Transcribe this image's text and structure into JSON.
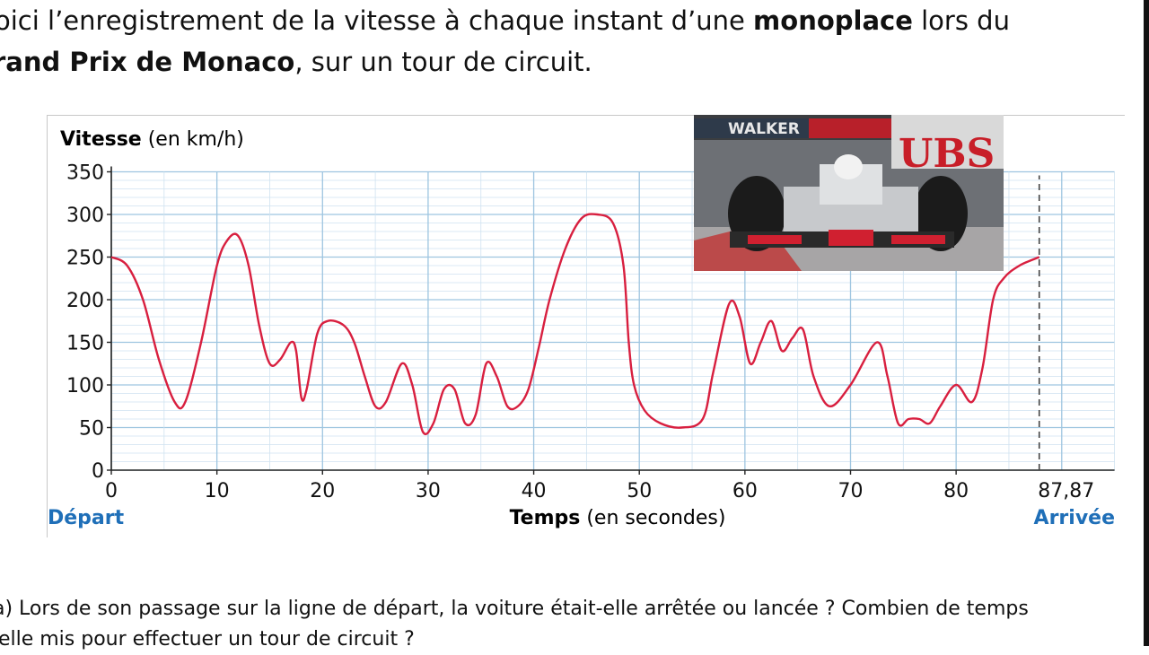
{
  "intro": {
    "line1_start": "oici l’enregistrement de la vitesse à chaque instant d’une ",
    "line1_bold": "monoplace",
    "line1_end": " lors du",
    "line2_bold": "rand Prix de Monaco",
    "line2_end": ", sur un tour de circuit."
  },
  "photo": {
    "banner_left": "WALKER",
    "banner_right": "UBS"
  },
  "question": {
    "line1": "a) Lors de son passage sur la ligne de départ, la voiture était-elle arrêtée ou lancée ? Combien de temps",
    "line2": "-elle mis pour effectuer un tour de circuit ?"
  },
  "chart_data": {
    "type": "line",
    "ylabel_bold": "Vitesse",
    "ylabel_unit": " (en km/h)",
    "xlabel_bold": "Temps",
    "xlabel_unit": " (en secondes)",
    "start_label": "Départ",
    "end_label": "Arrivée",
    "xlim": [
      0,
      95
    ],
    "ylim": [
      0,
      350
    ],
    "x_ticks": [
      0,
      10,
      20,
      30,
      40,
      50,
      60,
      70,
      80
    ],
    "x_tick_labels": [
      "0",
      "10",
      "20",
      "30",
      "40",
      "50",
      "60",
      "70",
      "80"
    ],
    "end_tick": 87.87,
    "end_tick_label": "87,87",
    "y_ticks": [
      0,
      50,
      100,
      150,
      200,
      250,
      300,
      350
    ],
    "y_tick_labels": [
      "0",
      "50",
      "100",
      "150",
      "200",
      "250",
      "300",
      "350"
    ],
    "grid": true,
    "accent_color": "#1f6fb8",
    "line_color": "#d81f3f",
    "series": [
      {
        "x": [
          0,
          1.5,
          3,
          4.5,
          6,
          7,
          8.5,
          10,
          11,
          12,
          13,
          14,
          15,
          16,
          17,
          17.5,
          18,
          18.5,
          19.5,
          20.5,
          22,
          23,
          24,
          25,
          26,
          27.5,
          28.5,
          29.5,
          30.5,
          31.5,
          32.5,
          33.5,
          34.5,
          35.5,
          36.5,
          37.5,
          38.5,
          39.5,
          40.5,
          41.5,
          43,
          44.5,
          46,
          47.5,
          48.5,
          49,
          49.5,
          50.5,
          52,
          54,
          56,
          57,
          58.5,
          59.5,
          60.5,
          61.5,
          62.5,
          63.5,
          64.5,
          65.5,
          66.5,
          68,
          70,
          72.5,
          73.5,
          74.5,
          75.5,
          76.5,
          77.5,
          78.5,
          80,
          81.5,
          82.5,
          83.5,
          84.5,
          86,
          87.87
        ],
        "y": [
          250,
          240,
          200,
          130,
          80,
          80,
          150,
          240,
          270,
          275,
          240,
          170,
          125,
          130,
          150,
          140,
          85,
          95,
          160,
          175,
          170,
          150,
          110,
          75,
          80,
          125,
          100,
          45,
          55,
          95,
          95,
          55,
          65,
          125,
          110,
          75,
          75,
          95,
          145,
          200,
          260,
          295,
          300,
          290,
          240,
          150,
          100,
          70,
          55,
          50,
          60,
          115,
          195,
          180,
          125,
          150,
          175,
          140,
          155,
          165,
          110,
          75,
          100,
          150,
          110,
          55,
          60,
          60,
          55,
          75,
          100,
          80,
          120,
          200,
          225,
          240,
          250
        ]
      }
    ]
  }
}
